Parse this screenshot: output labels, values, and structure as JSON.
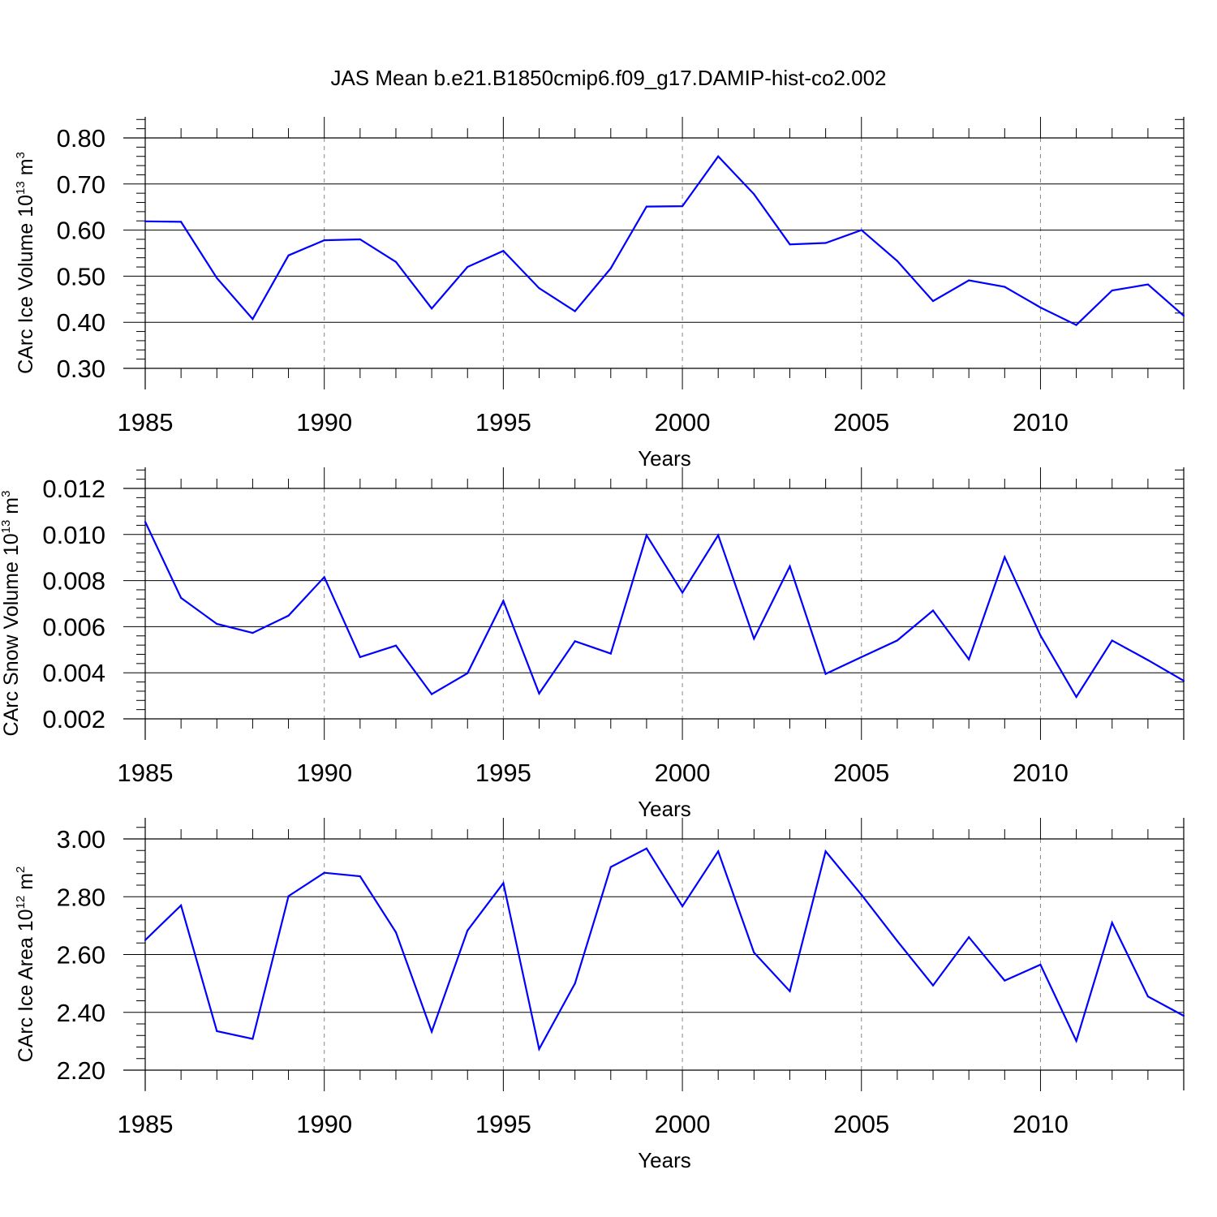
{
  "title": "JAS Mean b.e21.B1850cmip6.f09_g17.DAMIP-hist-co2.002",
  "colors": {
    "line": "#0000ff",
    "axis": "#000000",
    "grid": "#888888"
  },
  "chart_data": [
    {
      "type": "line",
      "ylabel": {
        "text": "CArc Ice Volume 10",
        "exponent": "13",
        "unit_tail": " m",
        "unit_exponent": "3"
      },
      "xlabel": "Years",
      "xlim": [
        1985,
        2014
      ],
      "ylim": [
        0.3,
        0.8
      ],
      "yticks": [
        0.3,
        0.4,
        0.5,
        0.6,
        0.7,
        0.8
      ],
      "ytick_labels": [
        "0.30",
        "0.40",
        "0.50",
        "0.60",
        "0.70",
        "0.80"
      ],
      "xticks": [
        1985,
        1990,
        1995,
        2000,
        2005,
        2010
      ],
      "xtick_labels": [
        "1985",
        "1990",
        "1995",
        "2000",
        "2005",
        "2010"
      ],
      "grid": "vertical dashed at major x ticks",
      "x": [
        1985,
        1986,
        1987,
        1988,
        1989,
        1990,
        1991,
        1992,
        1993,
        1994,
        1995,
        1996,
        1997,
        1998,
        1999,
        2000,
        2001,
        2002,
        2003,
        2004,
        2005,
        2006,
        2007,
        2008,
        2009,
        2010,
        2011,
        2012,
        2013,
        2014
      ],
      "y": [
        0.619,
        0.618,
        0.496,
        0.407,
        0.545,
        0.578,
        0.58,
        0.531,
        0.43,
        0.52,
        0.555,
        0.474,
        0.424,
        0.517,
        0.651,
        0.652,
        0.76,
        0.678,
        0.569,
        0.572,
        0.6,
        0.533,
        0.446,
        0.491,
        0.477,
        0.432,
        0.394,
        0.469,
        0.482,
        0.414
      ]
    },
    {
      "type": "line",
      "ylabel": {
        "text": "CArc Snow Volume 10",
        "exponent": "13",
        "unit_tail": " m",
        "unit_exponent": "3"
      },
      "xlabel": "Years",
      "xlim": [
        1985,
        2014
      ],
      "ylim": [
        0.002,
        0.012
      ],
      "yticks": [
        0.002,
        0.004,
        0.006,
        0.008,
        0.01,
        0.012
      ],
      "ytick_labels": [
        "0.002",
        "0.004",
        "0.006",
        "0.008",
        "0.010",
        "0.012"
      ],
      "xticks": [
        1985,
        1990,
        1995,
        2000,
        2005,
        2010
      ],
      "xtick_labels": [
        "1985",
        "1990",
        "1995",
        "2000",
        "2005",
        "2010"
      ],
      "grid": "vertical dashed at major x ticks",
      "x": [
        1985,
        1986,
        1987,
        1988,
        1989,
        1990,
        1991,
        1992,
        1993,
        1994,
        1995,
        1996,
        1997,
        1998,
        1999,
        2000,
        2001,
        2002,
        2003,
        2004,
        2005,
        2006,
        2007,
        2008,
        2009,
        2010,
        2011,
        2012,
        2013,
        2014
      ],
      "y": [
        0.01055,
        0.00725,
        0.00612,
        0.00573,
        0.00648,
        0.00815,
        0.00468,
        0.00518,
        0.00307,
        0.00398,
        0.00712,
        0.0031,
        0.00537,
        0.00483,
        0.00997,
        0.00748,
        0.00997,
        0.00548,
        0.00862,
        0.00395,
        0.00468,
        0.0054,
        0.0067,
        0.00458,
        0.00902,
        0.00562,
        0.00295,
        0.0054,
        0.00455,
        0.00365
      ]
    },
    {
      "type": "line",
      "ylabel": {
        "text": "CArc Ice Area 10",
        "exponent": "12",
        "unit_tail": " m",
        "unit_exponent": "2"
      },
      "xlabel": "Years",
      "xlim": [
        1985,
        2014
      ],
      "ylim": [
        2.2,
        3.0
      ],
      "yticks": [
        2.2,
        2.4,
        2.6,
        2.8,
        3.0
      ],
      "ytick_labels": [
        "2.20",
        "2.40",
        "2.60",
        "2.80",
        "3.00"
      ],
      "xticks": [
        1985,
        1990,
        1995,
        2000,
        2005,
        2010
      ],
      "xtick_labels": [
        "1985",
        "1990",
        "1995",
        "2000",
        "2005",
        "2010"
      ],
      "grid": "vertical dashed at major x ticks",
      "x": [
        1985,
        1986,
        1987,
        1988,
        1989,
        1990,
        1991,
        1992,
        1993,
        1994,
        1995,
        1996,
        1997,
        1998,
        1999,
        2000,
        2001,
        2002,
        2003,
        2004,
        2005,
        2006,
        2007,
        2008,
        2009,
        2010,
        2011,
        2012,
        2013,
        2014
      ],
      "y": [
        2.65,
        2.77,
        2.335,
        2.308,
        2.802,
        2.883,
        2.871,
        2.677,
        2.333,
        2.683,
        2.847,
        2.273,
        2.5,
        2.903,
        2.967,
        2.767,
        2.957,
        2.607,
        2.473,
        2.957,
        2.807,
        2.647,
        2.493,
        2.66,
        2.51,
        2.565,
        2.301,
        2.71,
        2.455,
        2.388
      ]
    }
  ]
}
